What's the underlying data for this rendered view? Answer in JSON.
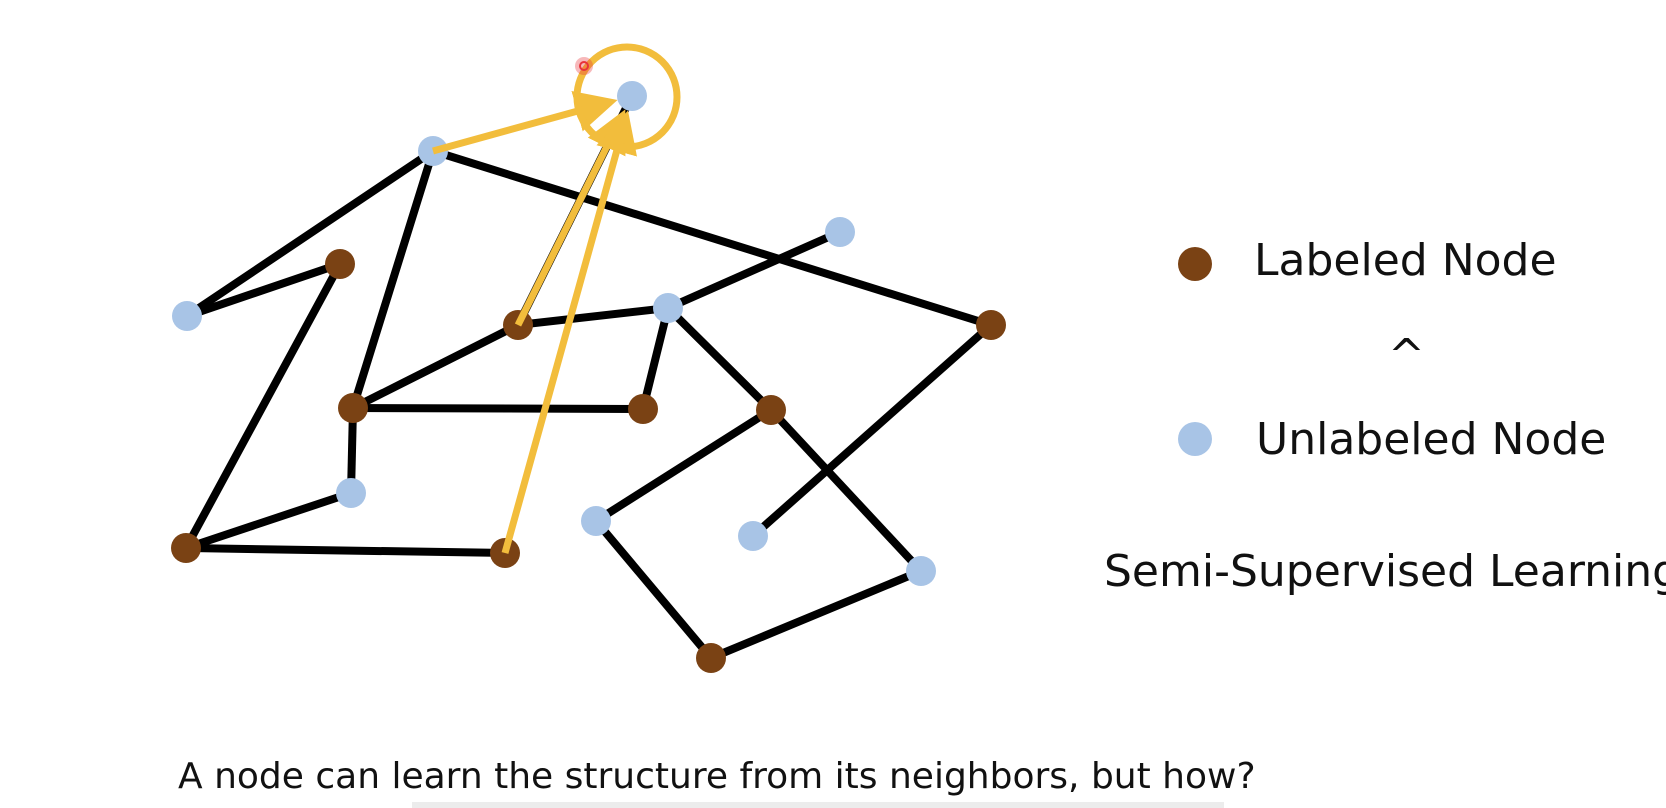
{
  "colors": {
    "labeled": "#7a4214",
    "unlabeled": "#a8c4e6",
    "edge": "#000000",
    "highlight": "#f2bd3c",
    "cursor": "#e8333a"
  },
  "legend": {
    "labeled_text": "Labeled Node",
    "operator": "^",
    "unlabeled_text": "Unlabeled Node"
  },
  "subtitle": "Semi-Supervised Learning",
  "caption": "A node can learn the structure from its neighbors, but how?",
  "graph": {
    "nodes": [
      {
        "id": "target",
        "type": "unlabeled"
      },
      {
        "id": "n-top",
        "type": "unlabeled"
      },
      {
        "id": "n-left",
        "type": "unlabeled"
      },
      {
        "id": "n-brown-upper-left",
        "type": "labeled"
      },
      {
        "id": "n-brown-center",
        "type": "labeled"
      },
      {
        "id": "n-blue-center",
        "type": "unlabeled"
      },
      {
        "id": "n-blue-far-right",
        "type": "unlabeled"
      },
      {
        "id": "n-brown-right",
        "type": "labeled"
      },
      {
        "id": "n-brown-mid-left",
        "type": "labeled"
      },
      {
        "id": "n-brown-mid",
        "type": "labeled"
      },
      {
        "id": "n-brown-mid-right",
        "type": "labeled"
      },
      {
        "id": "n-blue-low-left",
        "type": "unlabeled"
      },
      {
        "id": "n-brown-low-left",
        "type": "labeled"
      },
      {
        "id": "n-brown-low-center",
        "type": "labeled"
      },
      {
        "id": "n-blue-low-center",
        "type": "unlabeled"
      },
      {
        "id": "n-blue-low-right",
        "type": "unlabeled"
      },
      {
        "id": "n-blue-far-low-right",
        "type": "unlabeled"
      },
      {
        "id": "n-brown-bottom",
        "type": "labeled"
      }
    ],
    "edges": [
      [
        "n-top",
        "n-left"
      ],
      [
        "n-left",
        "n-brown-upper-left"
      ],
      [
        "n-top",
        "n-brown-mid-left"
      ],
      [
        "n-top",
        "n-brown-right"
      ],
      [
        "n-brown-upper-left",
        "n-brown-low-left"
      ],
      [
        "n-brown-mid-left",
        "n-brown-center"
      ],
      [
        "n-brown-mid-left",
        "n-brown-mid"
      ],
      [
        "n-brown-mid-left",
        "n-blue-low-left"
      ],
      [
        "n-blue-low-left",
        "n-brown-low-left"
      ],
      [
        "n-brown-low-left",
        "n-brown-low-center"
      ],
      [
        "n-brown-center",
        "n-blue-center"
      ],
      [
        "n-brown-center",
        "target"
      ],
      [
        "n-blue-center",
        "n-blue-far-right"
      ],
      [
        "n-blue-center",
        "n-brown-mid"
      ],
      [
        "n-blue-center",
        "n-brown-mid-right"
      ],
      [
        "n-brown-mid-right",
        "n-blue-low-center"
      ],
      [
        "n-brown-mid-right",
        "n-blue-far-low-right"
      ],
      [
        "n-brown-right",
        "n-blue-low-right"
      ],
      [
        "n-blue-low-center",
        "n-brown-bottom"
      ],
      [
        "n-brown-bottom",
        "n-blue-far-low-right"
      ]
    ],
    "message_arrows": [
      [
        "n-top",
        "target"
      ],
      [
        "n-brown-center",
        "target"
      ],
      [
        "n-brown-low-center",
        "target"
      ]
    ],
    "highlighted_node": "target"
  }
}
